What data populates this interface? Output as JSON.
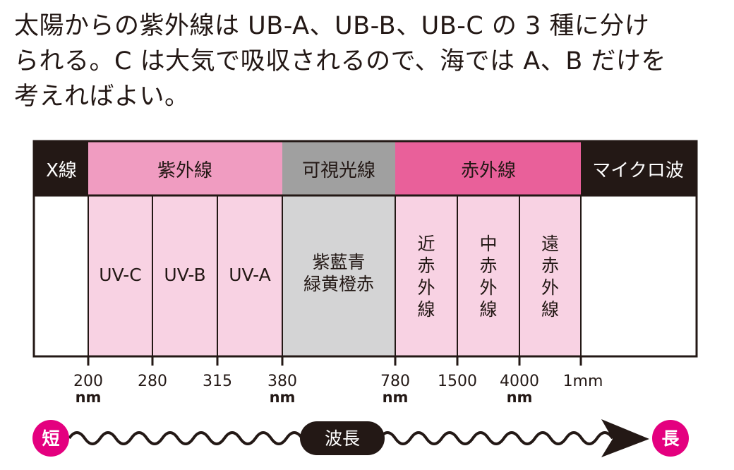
{
  "intro_lines": [
    "太陽からの紫外線は UB-A、UB-B、UB-C の 3 種に分け",
    "られる。C は大気で吸収されるので、海では A、B だけを",
    "考えればよい。"
  ],
  "colors": {
    "dark": "#231815",
    "uv_header": "#f09cc1",
    "uv_body": "#f8d2e3",
    "visible_header": "#a0a0a0",
    "visible_body": "#d4d4d5",
    "ir_header": "#e9609a",
    "ir_body": "#f8d2e3",
    "accent": "#e4007f"
  },
  "bands": [
    {
      "label": "X線",
      "header_color": "dark",
      "body_color": "white"
    },
    {
      "label": "紫外線",
      "header_color": "uv_header",
      "body_color": "uv_body"
    },
    {
      "label": "可視光線",
      "header_color": "visible_header",
      "body_color": "visible_body"
    },
    {
      "label": "赤外線",
      "header_color": "ir_header",
      "body_color": "ir_body"
    },
    {
      "label": "マイクロ波",
      "header_color": "dark",
      "body_color": "white"
    }
  ],
  "sub_bands": [
    {
      "label": "UV-C",
      "orientation": "horizontal"
    },
    {
      "label": "UV-B",
      "orientation": "horizontal"
    },
    {
      "label": "UV-A",
      "orientation": "horizontal"
    },
    {
      "label": "紫藍青\n緑黄橙赤",
      "orientation": "horizontal"
    },
    {
      "label": "近赤外線",
      "orientation": "vertical"
    },
    {
      "label": "中赤外線",
      "orientation": "vertical"
    },
    {
      "label": "遠赤外線",
      "orientation": "vertical"
    }
  ],
  "ticks": [
    {
      "value": "200",
      "unit": "nm"
    },
    {
      "value": "280",
      "unit": ""
    },
    {
      "value": "315",
      "unit": ""
    },
    {
      "value": "380",
      "unit": "nm"
    },
    {
      "value": "780",
      "unit": "nm"
    },
    {
      "value": "1500",
      "unit": ""
    },
    {
      "value": "4000",
      "unit": "nm"
    },
    {
      "value": "1mm",
      "unit": ""
    }
  ],
  "wavelength_axis": {
    "short_label": "短",
    "long_label": "長",
    "center_label": "波長"
  }
}
